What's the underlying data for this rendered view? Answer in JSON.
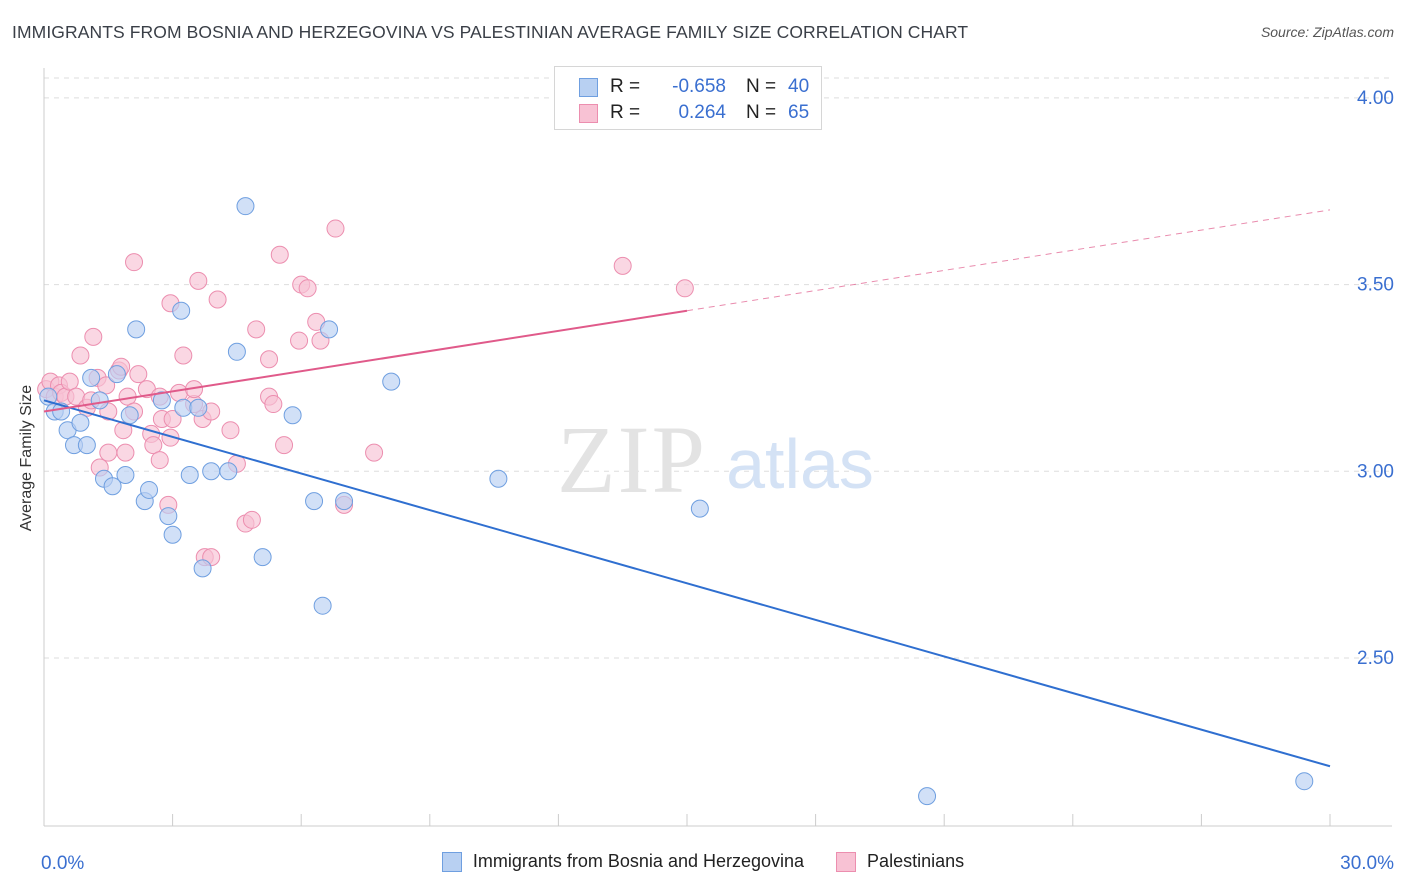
{
  "title": "IMMIGRANTS FROM BOSNIA AND HERZEGOVINA VS PALESTINIAN AVERAGE FAMILY SIZE CORRELATION CHART",
  "source": "Source: ZipAtlas.com",
  "watermark": {
    "zip": "ZIP",
    "atlas": "atlas"
  },
  "colors": {
    "blue_fill": "#b8d0f2",
    "blue_stroke": "#6f9fe0",
    "blue_line": "#2f6fd0",
    "pink_fill": "#f8c2d4",
    "pink_stroke": "#ec8eaf",
    "pink_line": "#e05a8a",
    "axis_text": "#3a6fd0",
    "grid": "#dddddd"
  },
  "legend_top": [
    {
      "r_label": "R =",
      "r_value": "-0.658",
      "n_label": "N =",
      "n_value": "40",
      "series": "blue"
    },
    {
      "r_label": "R =",
      "r_value": "0.264",
      "n_label": "N =",
      "n_value": "65",
      "series": "pink"
    }
  ],
  "legend_bottom": [
    {
      "label": "Immigrants from Bosnia and Herzegovina",
      "series": "blue"
    },
    {
      "label": "Palestinians",
      "series": "pink"
    }
  ],
  "chart_data": {
    "type": "scatter",
    "title": "IMMIGRANTS FROM BOSNIA AND HERZEGOVINA VS PALESTINIAN AVERAGE FAMILY SIZE CORRELATION CHART",
    "xlabel": "",
    "ylabel": "Average Family Size",
    "xlim": [
      0,
      30
    ],
    "ylim": [
      2.05,
      4.08
    ],
    "x_tick_labels": [
      {
        "value": 0,
        "label": "0.0%"
      },
      {
        "value": 30,
        "label": "30.0%"
      }
    ],
    "y_ticks": [
      {
        "value": 2.5,
        "label": "2.50"
      },
      {
        "value": 3.0,
        "label": "3.00"
      },
      {
        "value": 3.5,
        "label": "3.50"
      },
      {
        "value": 4.0,
        "label": "4.00"
      }
    ],
    "grid": true,
    "legend_position": "top-center",
    "series": [
      {
        "name": "Immigrants from Bosnia and Herzegovina",
        "color": "blue",
        "trend": {
          "x": [
            0,
            30
          ],
          "y": [
            3.19,
            2.21
          ],
          "dashed_from": null
        },
        "points": [
          [
            0.1,
            3.2
          ],
          [
            0.25,
            3.16
          ],
          [
            0.4,
            3.16
          ],
          [
            0.55,
            3.11
          ],
          [
            0.7,
            3.07
          ],
          [
            0.85,
            3.13
          ],
          [
            1.0,
            3.07
          ],
          [
            1.1,
            3.25
          ],
          [
            1.3,
            3.19
          ],
          [
            1.4,
            2.98
          ],
          [
            1.6,
            2.96
          ],
          [
            1.7,
            3.26
          ],
          [
            1.9,
            2.99
          ],
          [
            2.0,
            3.15
          ],
          [
            2.15,
            3.38
          ],
          [
            2.35,
            2.92
          ],
          [
            2.45,
            2.95
          ],
          [
            2.75,
            3.19
          ],
          [
            2.9,
            2.88
          ],
          [
            3.0,
            2.83
          ],
          [
            3.2,
            3.43
          ],
          [
            3.25,
            3.17
          ],
          [
            3.4,
            2.99
          ],
          [
            3.6,
            3.17
          ],
          [
            3.7,
            2.74
          ],
          [
            3.9,
            3.0
          ],
          [
            4.3,
            3.0
          ],
          [
            4.5,
            3.32
          ],
          [
            4.7,
            3.71
          ],
          [
            5.1,
            2.77
          ],
          [
            5.8,
            3.15
          ],
          [
            6.3,
            2.92
          ],
          [
            6.5,
            2.64
          ],
          [
            6.65,
            3.38
          ],
          [
            7.0,
            2.92
          ],
          [
            8.1,
            3.24
          ],
          [
            10.6,
            2.98
          ],
          [
            15.3,
            2.9
          ],
          [
            20.6,
            2.13
          ],
          [
            29.4,
            2.17
          ]
        ]
      },
      {
        "name": "Palestinians",
        "color": "pink",
        "trend": {
          "x": [
            0,
            30
          ],
          "y": [
            3.16,
            3.7
          ],
          "dashed_from": 15
        },
        "points": [
          [
            0.05,
            3.22
          ],
          [
            0.15,
            3.24
          ],
          [
            0.25,
            3.2
          ],
          [
            0.35,
            3.23
          ],
          [
            0.4,
            3.21
          ],
          [
            0.5,
            3.2
          ],
          [
            0.6,
            3.24
          ],
          [
            0.75,
            3.2
          ],
          [
            0.85,
            3.31
          ],
          [
            1.0,
            3.17
          ],
          [
            1.1,
            3.19
          ],
          [
            1.15,
            3.36
          ],
          [
            1.25,
            3.25
          ],
          [
            1.3,
            3.01
          ],
          [
            1.45,
            3.23
          ],
          [
            1.5,
            3.16
          ],
          [
            1.5,
            3.05
          ],
          [
            1.75,
            3.27
          ],
          [
            1.85,
            3.11
          ],
          [
            1.9,
            3.05
          ],
          [
            1.95,
            3.2
          ],
          [
            2.1,
            3.16
          ],
          [
            2.1,
            3.56
          ],
          [
            2.2,
            3.26
          ],
          [
            2.4,
            3.22
          ],
          [
            2.5,
            3.1
          ],
          [
            2.55,
            3.07
          ],
          [
            2.7,
            3.03
          ],
          [
            2.7,
            3.2
          ],
          [
            2.75,
            3.14
          ],
          [
            2.9,
            2.91
          ],
          [
            3.0,
            3.14
          ],
          [
            2.95,
            3.45
          ],
          [
            3.15,
            3.21
          ],
          [
            3.25,
            3.31
          ],
          [
            3.5,
            3.18
          ],
          [
            3.5,
            3.22
          ],
          [
            3.6,
            3.51
          ],
          [
            3.7,
            3.14
          ],
          [
            3.75,
            2.77
          ],
          [
            3.9,
            2.77
          ],
          [
            3.9,
            3.16
          ],
          [
            4.05,
            3.46
          ],
          [
            4.35,
            3.11
          ],
          [
            4.5,
            3.02
          ],
          [
            4.7,
            2.86
          ],
          [
            4.85,
            2.87
          ],
          [
            4.95,
            3.38
          ],
          [
            5.25,
            3.2
          ],
          [
            5.35,
            3.18
          ],
          [
            5.5,
            3.58
          ],
          [
            5.6,
            3.07
          ],
          [
            5.95,
            3.35
          ],
          [
            6.0,
            3.5
          ],
          [
            6.15,
            3.49
          ],
          [
            6.35,
            3.4
          ],
          [
            6.45,
            3.35
          ],
          [
            6.8,
            3.65
          ],
          [
            7.0,
            2.91
          ],
          [
            7.7,
            3.05
          ],
          [
            13.5,
            3.55
          ],
          [
            14.95,
            3.49
          ],
          [
            1.8,
            3.28
          ],
          [
            2.95,
            3.09
          ],
          [
            5.25,
            3.3
          ]
        ]
      }
    ]
  }
}
